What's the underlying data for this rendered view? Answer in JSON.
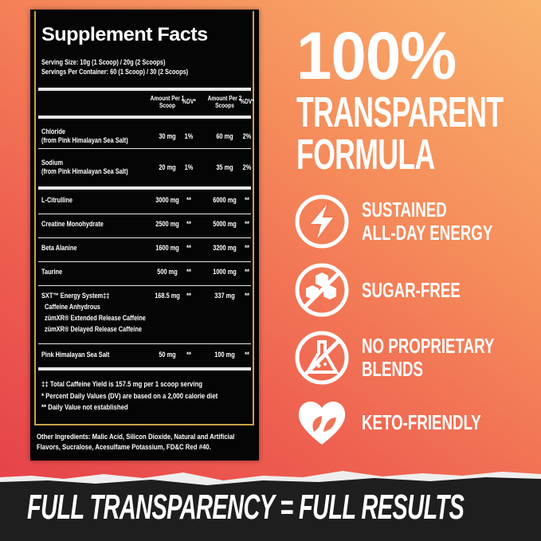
{
  "supplement_facts": {
    "title": "Supplement Facts",
    "serving_size": "Serving Size: 10g (1 Scoop) / 20g (2 Scoops)",
    "servings_per_container": "Servings Per Container: 60 (1 Scoop) / 30 (2 Scoops)",
    "columns": [
      "Amount Per 1 Scoop",
      "%DV*",
      "Amount Per 2 Scoops",
      "%DV*"
    ],
    "rows": [
      {
        "name": "Chloride",
        "sub": "(from Pink Himalayan Sea Salt)",
        "amt1": "30 mg",
        "dv1": "1%",
        "amt2": "60 mg",
        "dv2": "2%"
      },
      {
        "name": "Sodium",
        "sub": "(from Pink Himalayan Sea Salt)",
        "amt1": "20 mg",
        "dv1": "1%",
        "amt2": "35 mg",
        "dv2": "2%"
      },
      {
        "name": "L-Citrulline",
        "amt1": "3000 mg",
        "dv1": "**",
        "amt2": "6000 mg",
        "dv2": "**"
      },
      {
        "name": "Creatine Monohydrate",
        "amt1": "2500 mg",
        "dv1": "**",
        "amt2": "5000 mg",
        "dv2": "**"
      },
      {
        "name": "Beta Alanine",
        "amt1": "1600 mg",
        "dv1": "**",
        "amt2": "3200 mg",
        "dv2": "**"
      },
      {
        "name": "Taurine",
        "amt1": "500 mg",
        "dv1": "**",
        "amt2": "1000 mg",
        "dv2": "**"
      },
      {
        "name": "SXT™ Energy System‡‡",
        "amt1": "168.5 mg",
        "dv1": "**",
        "amt2": "337 mg",
        "dv2": "**",
        "components": [
          "Caffeine Anhydrous",
          "zümXR® Extended Release Caffeine",
          "zümXR® Delayed Release Caffeine"
        ]
      },
      {
        "name": "Pink Himalayan Sea Salt",
        "amt1": "50 mg",
        "dv1": "**",
        "amt2": "100 mg",
        "dv2": "**"
      }
    ],
    "footnotes": [
      "‡‡ Total Caffeine Yield is 157.5 mg per 1 scoop serving",
      "* Percent Daily Values (DV) are based on a 2,000 calorie diet",
      "** Daily Value not established"
    ],
    "other_ingredients": "Other Ingredients: Malic Acid, Silicon Dioxide, Natural and Artificial Flavors, Sucralose, Acesulfame Potassium, FD&C Red #40."
  },
  "hero": {
    "line1": "100%",
    "line2": "TRANSPARENT",
    "line3": "FORMULA"
  },
  "features": [
    {
      "icon": "lightning-bolt-icon",
      "lines": [
        "SUSTAINED",
        "ALL-DAY ENERGY"
      ]
    },
    {
      "icon": "no-sugar-cubes-icon",
      "lines": [
        "SUGAR-FREE"
      ]
    },
    {
      "icon": "no-flask-icon",
      "lines": [
        "NO PROPRIETARY",
        "BLENDS"
      ]
    },
    {
      "icon": "heart-leaf-icon",
      "lines": [
        "KETO-FRIENDLY"
      ]
    }
  ],
  "slogan": "FULL TRANSPARENCY = FULL RESULTS",
  "colors": {
    "gradient_top": "#f9b26c",
    "gradient_bottom": "#e43c48",
    "panel": "#050505",
    "gold_border": "#c9a24a",
    "banner": "#1e1e1e"
  }
}
